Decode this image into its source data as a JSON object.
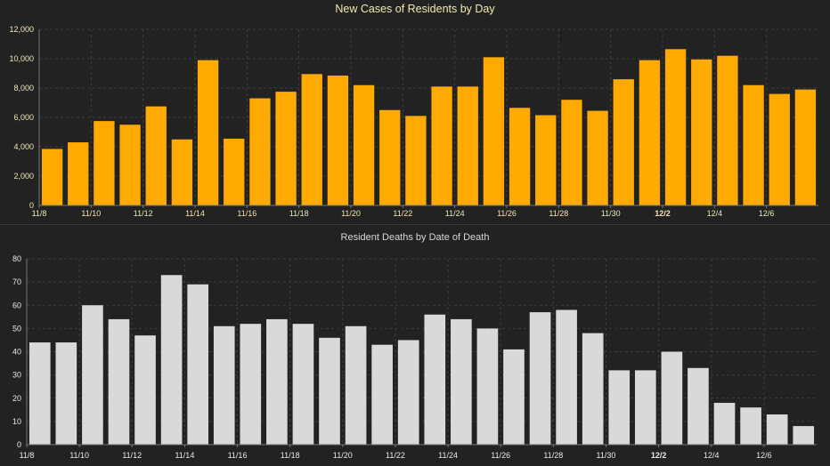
{
  "charts": {
    "cases": {
      "title": "New Cases of Residents by Day"
    },
    "deaths": {
      "title": "Resident Deaths by Date of Death"
    }
  },
  "colors": {
    "background": "#222222",
    "cases_bar": "#ffaa00",
    "deaths_bar": "#d9d9d9",
    "grid": "#3c3c3c",
    "axis": "#777777",
    "tick_text_cases": "#f0e6b4",
    "tick_text_deaths": "#e8e8e8"
  },
  "chart_data": [
    {
      "type": "bar",
      "title": "New Cases of Residents by Day",
      "xlabel": "",
      "ylabel": "",
      "categories": [
        "11/8",
        "11/9",
        "11/10",
        "11/11",
        "11/12",
        "11/13",
        "11/14",
        "11/15",
        "11/16",
        "11/17",
        "11/18",
        "11/19",
        "11/20",
        "11/21",
        "11/22",
        "11/23",
        "11/24",
        "11/25",
        "11/26",
        "11/27",
        "11/28",
        "11/29",
        "11/30",
        "12/1",
        "12/2",
        "12/3",
        "12/4",
        "12/5",
        "12/6",
        "12/7"
      ],
      "values": [
        3850,
        4300,
        5750,
        5500,
        6750,
        4500,
        9900,
        4550,
        7300,
        7750,
        8950,
        8850,
        8200,
        6500,
        6100,
        8100,
        8100,
        10100,
        6650,
        6150,
        7200,
        6450,
        8600,
        9900,
        10650,
        9950,
        10200,
        8200,
        7600,
        7900
      ],
      "x_tick_labels": [
        "11/8",
        "11/10",
        "11/12",
        "11/14",
        "11/16",
        "11/18",
        "11/20",
        "11/22",
        "11/24",
        "11/26",
        "11/28",
        "11/30",
        "12/2",
        "12/4",
        "12/6"
      ],
      "y_tick_labels": [
        "0",
        "2,000",
        "4,000",
        "6,000",
        "8,000",
        "10,000",
        "12,000"
      ],
      "ylim": [
        0,
        12000
      ],
      "grid": true
    },
    {
      "type": "bar",
      "title": "Resident Deaths by Date of Death",
      "xlabel": "",
      "ylabel": "",
      "categories": [
        "11/8",
        "11/9",
        "11/10",
        "11/11",
        "11/12",
        "11/13",
        "11/14",
        "11/15",
        "11/16",
        "11/17",
        "11/18",
        "11/19",
        "11/20",
        "11/21",
        "11/22",
        "11/23",
        "11/24",
        "11/25",
        "11/26",
        "11/27",
        "11/28",
        "11/29",
        "11/30",
        "12/1",
        "12/2",
        "12/3",
        "12/4",
        "12/5",
        "12/6",
        "12/7"
      ],
      "values": [
        44,
        44,
        60,
        54,
        47,
        73,
        69,
        51,
        52,
        54,
        52,
        46,
        51,
        43,
        45,
        56,
        54,
        50,
        41,
        57,
        58,
        48,
        32,
        32,
        40,
        33,
        18,
        16,
        13,
        8
      ],
      "x_tick_labels": [
        "11/8",
        "11/10",
        "11/12",
        "11/14",
        "11/16",
        "11/18",
        "11/20",
        "11/22",
        "11/24",
        "11/26",
        "11/28",
        "11/30",
        "12/2",
        "12/4",
        "12/6"
      ],
      "y_tick_labels": [
        "0",
        "10",
        "20",
        "30",
        "40",
        "50",
        "60",
        "70",
        "80"
      ],
      "ylim": [
        0,
        80
      ],
      "grid": true
    }
  ]
}
